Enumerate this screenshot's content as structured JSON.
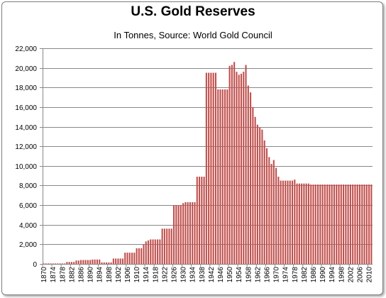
{
  "chart_data": {
    "type": "bar",
    "title": "U.S. Gold Reserves",
    "subtitle": "In Tonnes, Source: World Gold Council",
    "xlabel": "",
    "ylabel": "",
    "ylim": [
      0,
      22000
    ],
    "y_ticks": [
      "0",
      "2,000",
      "4,000",
      "6,000",
      "8,000",
      "10,000",
      "12,000",
      "14,000",
      "16,000",
      "18,000",
      "20,000",
      "22,000"
    ],
    "x_ticks": [
      1870,
      1874,
      1878,
      1882,
      1886,
      1890,
      1894,
      1898,
      1902,
      1906,
      1910,
      1914,
      1918,
      1922,
      1926,
      1930,
      1934,
      1938,
      1942,
      1946,
      1950,
      1954,
      1958,
      1962,
      1966,
      1970,
      1974,
      1978,
      1982,
      1986,
      1990,
      1994,
      1998,
      2002,
      2006,
      2010
    ],
    "grid": true,
    "legend": "none",
    "bar_color": "#c0504d",
    "x": [
      1870,
      1871,
      1872,
      1873,
      1874,
      1875,
      1876,
      1877,
      1878,
      1879,
      1880,
      1881,
      1882,
      1883,
      1884,
      1885,
      1886,
      1887,
      1888,
      1889,
      1890,
      1891,
      1892,
      1893,
      1894,
      1895,
      1896,
      1897,
      1898,
      1899,
      1900,
      1901,
      1902,
      1903,
      1904,
      1905,
      1906,
      1907,
      1908,
      1909,
      1910,
      1911,
      1912,
      1913,
      1914,
      1915,
      1916,
      1917,
      1918,
      1919,
      1920,
      1921,
      1922,
      1923,
      1924,
      1925,
      1926,
      1927,
      1928,
      1929,
      1930,
      1931,
      1932,
      1933,
      1934,
      1935,
      1936,
      1937,
      1938,
      1939,
      1940,
      1941,
      1942,
      1943,
      1944,
      1945,
      1946,
      1947,
      1948,
      1949,
      1950,
      1951,
      1952,
      1953,
      1954,
      1955,
      1956,
      1957,
      1958,
      1959,
      1960,
      1961,
      1962,
      1963,
      1964,
      1965,
      1966,
      1967,
      1968,
      1969,
      1970,
      1971,
      1972,
      1973,
      1974,
      1975,
      1976,
      1977,
      1978,
      1979,
      1980,
      1981,
      1982,
      1983,
      1984,
      1985,
      1986,
      1987,
      1988,
      1989,
      1990,
      1991,
      1992,
      1993,
      1994,
      1995,
      1996,
      1997,
      1998,
      1999,
      2000,
      2001,
      2002,
      2003,
      2004,
      2005,
      2006,
      2007,
      2008,
      2009,
      2010,
      2011
    ],
    "values": [
      50,
      50,
      50,
      50,
      50,
      50,
      50,
      50,
      50,
      50,
      200,
      200,
      200,
      200,
      350,
      350,
      400,
      400,
      400,
      400,
      400,
      450,
      450,
      450,
      450,
      150,
      150,
      150,
      150,
      150,
      550,
      550,
      550,
      550,
      550,
      1150,
      1150,
      1150,
      1150,
      1150,
      1600,
      1600,
      1600,
      2000,
      2300,
      2400,
      2500,
      2500,
      2500,
      2500,
      2500,
      3600,
      3600,
      3600,
      3600,
      3600,
      6000,
      6000,
      6000,
      6000,
      6200,
      6300,
      6300,
      6300,
      6300,
      6300,
      8900,
      8900,
      8900,
      8900,
      19500,
      19500,
      19500,
      19500,
      19500,
      17800,
      17800,
      17800,
      17800,
      17800,
      20200,
      20300,
      20600,
      19600,
      19300,
      19400,
      19600,
      20300,
      18200,
      17500,
      16000,
      15000,
      14200,
      13900,
      13700,
      12600,
      11800,
      10900,
      10200,
      10600,
      9800,
      8900,
      8500,
      8500,
      8500,
      8500,
      8500,
      8500,
      8600,
      8200,
      8200,
      8200,
      8200,
      8200,
      8200,
      8100,
      8100,
      8100,
      8100,
      8100,
      8100,
      8100,
      8100,
      8100,
      8100,
      8100,
      8100,
      8100,
      8100,
      8100,
      8100,
      8100,
      8100,
      8100,
      8100,
      8100,
      8100,
      8100,
      8100,
      8100,
      8100,
      8100
    ]
  }
}
